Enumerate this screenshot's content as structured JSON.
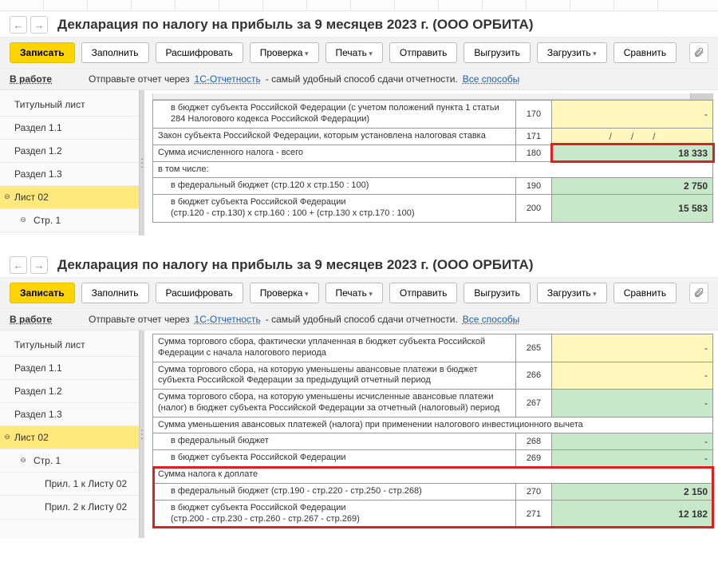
{
  "title": "Декларация по налогу на прибыль за 9 месяцев 2023 г. (ООО ОРБИТА)",
  "toolbar": {
    "write": "Записать",
    "fill": "Заполнить",
    "decode": "Расшифровать",
    "check": "Проверка",
    "print": "Печать",
    "send": "Отправить",
    "export": "Выгрузить",
    "import": "Загрузить",
    "compare": "Сравнить"
  },
  "info": {
    "status": "В работе",
    "pre": "Отправьте отчет через ",
    "link1": "1С-Отчетность",
    "mid": " - самый удобный способ сдачи отчетности. ",
    "link2": "Все способы"
  },
  "sidebar": {
    "title_page": "Титульный лист",
    "r11": "Раздел 1.1",
    "r12": "Раздел 1.2",
    "r13": "Раздел 1.3",
    "list02": "Лист 02",
    "str1": "Стр. 1",
    "pril1": "Прил. 1 к Листу 02",
    "pril2": "Прил. 2 к Листу 02"
  },
  "panel1": {
    "rows": [
      {
        "desc": "в бюджет субъекта Российской Федерации (с учетом положений пункта 1 статьи 284 Налогового кодекса Российской Федерации)",
        "code": "170",
        "val": "-",
        "cls": "yellow",
        "indent": true
      },
      {
        "desc": "Закон субъекта Российской Федерации, которым установлена налоговая ставка",
        "code": "171",
        "val": "",
        "cls": "yellow",
        "slashes": true
      },
      {
        "desc": "Сумма исчисленного налога - всего",
        "code": "180",
        "val": "18 333",
        "cls": "green",
        "highlight": true
      },
      {
        "desc": "в том числе:",
        "section": true
      },
      {
        "desc": "в федеральный бюджет (стр.120 х стр.150 : 100)",
        "code": "190",
        "val": "2 750",
        "cls": "green",
        "indent": true
      },
      {
        "desc": "в бюджет субъекта Российской Федерации\n(стр.120 - стр.130) х стр.160 : 100 + (стр.130 х стр.170 : 100)",
        "code": "200",
        "val": "15 583",
        "cls": "green",
        "indent": true
      }
    ]
  },
  "panel2": {
    "rows": [
      {
        "desc": "Сумма торгового сбора, фактически уплаченная в бюджет субъекта Российской Федерации с начала налогового периода",
        "code": "265",
        "val": "-",
        "cls": "yellow"
      },
      {
        "desc": "Сумма торгового сбора, на которую уменьшены авансовые платежи в бюджет субъекта Российской Федерации за предыдущий отчетный период",
        "code": "266",
        "val": "-",
        "cls": "yellow"
      },
      {
        "desc": "Сумма торгового сбора, на которую уменьшены исчисленные авансовые платежи (налог) в бюджет субъекта Российской Федерации за отчетный (налоговый) период",
        "code": "267",
        "val": "-",
        "cls": "green"
      },
      {
        "desc": "Сумма уменьшения авансовых платежей (налога) при применении налогового инвестиционного вычета",
        "section": true
      },
      {
        "desc": "в федеральный бюджет",
        "code": "268",
        "val": "-",
        "cls": "green",
        "indent": true
      },
      {
        "desc": "в бюджет субъекта Российской Федерации",
        "code": "269",
        "val": "-",
        "cls": "green",
        "indent": true
      },
      {
        "desc": "Сумма налога к доплате",
        "section": true,
        "group": true
      },
      {
        "desc": "в федеральный бюджет (стр.190 - стр.220 - стр.250 - стр.268)",
        "code": "270",
        "val": "2 150",
        "cls": "green",
        "indent": true,
        "group": true
      },
      {
        "desc": "в бюджет субъекта Российской Федерации\n(стр.200 - стр.230 - стр.260 - стр.267 - стр.269)",
        "code": "271",
        "val": "12 182",
        "cls": "green",
        "indent": true,
        "group": true
      }
    ]
  }
}
